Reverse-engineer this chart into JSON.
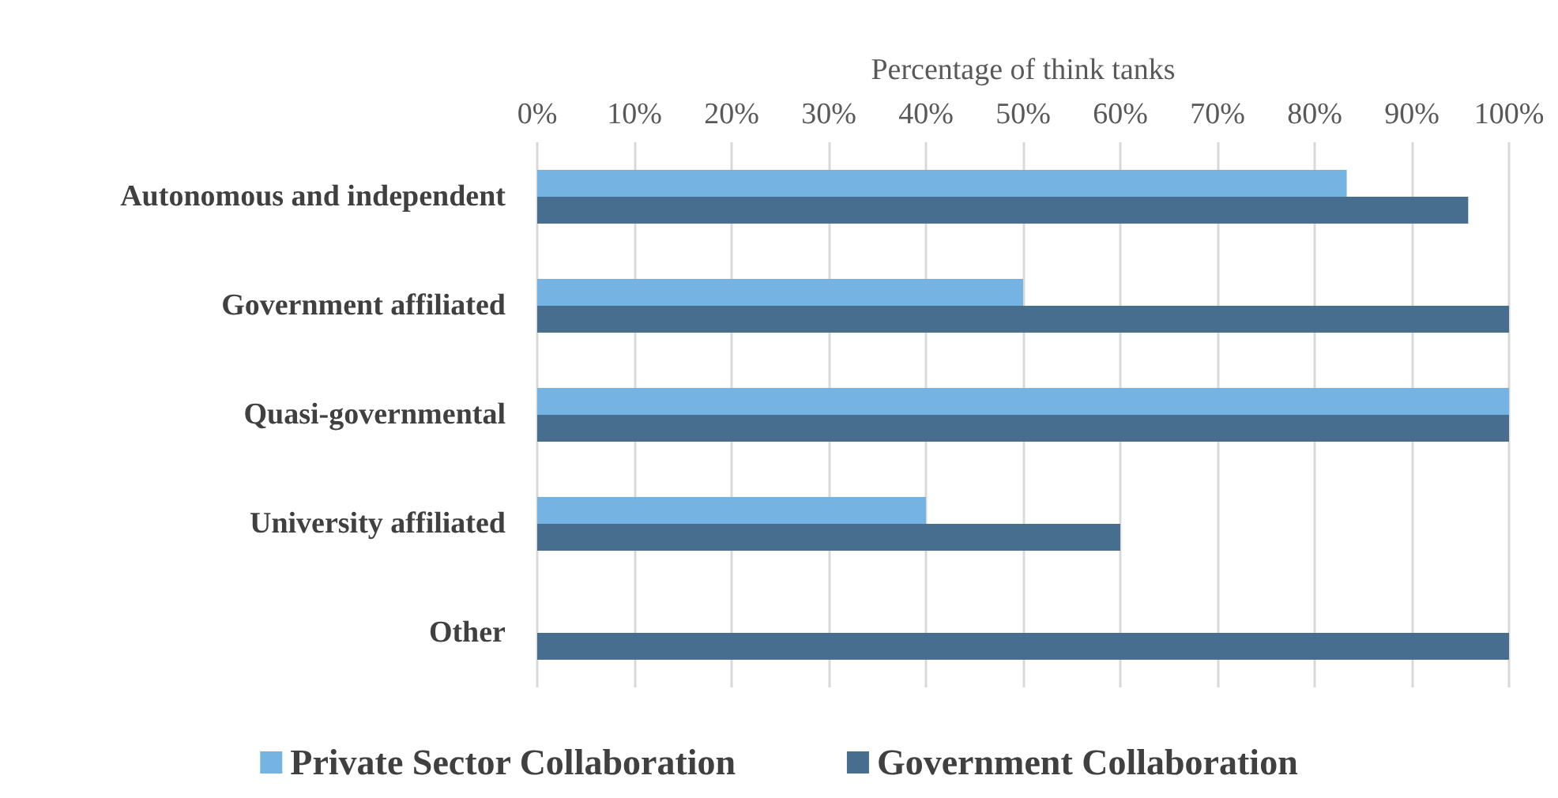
{
  "chart_data": {
    "type": "bar",
    "orientation": "horizontal",
    "xlabel": "Percentage of think tanks",
    "categories": [
      "Autonomous and independent",
      "Government affiliated",
      "Quasi-governmental",
      "University affiliated",
      "Other"
    ],
    "series": [
      {
        "name": "Private Sector Collaboration",
        "color": "#74b3e2",
        "values": [
          83.3,
          50,
          100,
          40,
          0
        ]
      },
      {
        "name": "Government Collaboration",
        "color": "#476d8f",
        "values": [
          95.8,
          100,
          100,
          60,
          100
        ]
      }
    ],
    "xlim": [
      0,
      100
    ],
    "xticks": [
      {
        "value": 0,
        "label": "0%"
      },
      {
        "value": 10,
        "label": "10%"
      },
      {
        "value": 20,
        "label": "20%"
      },
      {
        "value": 30,
        "label": "30%"
      },
      {
        "value": 40,
        "label": "40%"
      },
      {
        "value": 50,
        "label": "50%"
      },
      {
        "value": 60,
        "label": "60%"
      },
      {
        "value": 70,
        "label": "70%"
      },
      {
        "value": 80,
        "label": "80%"
      },
      {
        "value": 90,
        "label": "90%"
      },
      {
        "value": 100,
        "label": "100%"
      }
    ],
    "grid": "x",
    "legend": "bottom"
  }
}
